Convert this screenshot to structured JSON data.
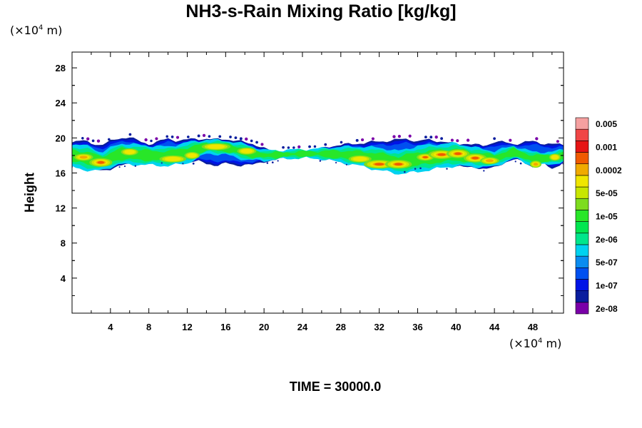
{
  "chart_data": {
    "type": "heatmap",
    "title": "NH3-s-Rain Mixing Ratio [kg/kg]",
    "x_unit_base": "(×10",
    "x_unit_exp": "4",
    "x_unit_tail": " m)",
    "y_unit_base": "(×10",
    "y_unit_exp": "4",
    "y_unit_tail": " m)",
    "ylabel": "Height",
    "xlabel": "",
    "x_ticks": [
      "4",
      "8",
      "12",
      "16",
      "20",
      "24",
      "28",
      "32",
      "36",
      "40",
      "44",
      "48"
    ],
    "y_ticks": [
      "4",
      "8",
      "12",
      "16",
      "20",
      "24",
      "28"
    ],
    "xlim": [
      0,
      51.2
    ],
    "ylim": [
      0,
      29.8
    ],
    "grid": false,
    "time_label": "TIME = 30000.0",
    "colorbar": {
      "colors": [
        "#7a00a8",
        "#0a1d9e",
        "#0014e6",
        "#0050f0",
        "#0a8cf0",
        "#00d2f0",
        "#00e68c",
        "#00e650",
        "#28e628",
        "#7ddc1e",
        "#c8e600",
        "#f0e600",
        "#f0aa00",
        "#f05a00",
        "#e61414",
        "#f04646",
        "#f5a0a0"
      ],
      "labels": [
        "2e-08",
        "1e-07",
        "5e-07",
        "2e-06",
        "1e-05",
        "5e-05",
        "0.0002",
        "0.001",
        "0.005"
      ]
    },
    "layer": {
      "height_range": [
        16.2,
        20.2
      ],
      "upper_edge": [
        [
          0,
          19.6
        ],
        [
          1,
          19.7
        ],
        [
          2,
          19.4
        ],
        [
          3,
          19.2
        ],
        [
          4,
          19.6
        ],
        [
          5,
          20.0
        ],
        [
          6,
          20.1
        ],
        [
          7,
          19.6
        ],
        [
          8,
          19.3
        ],
        [
          9,
          19.6
        ],
        [
          10,
          19.9
        ],
        [
          11,
          19.7
        ],
        [
          12,
          19.8
        ],
        [
          13,
          19.9
        ],
        [
          14,
          19.9
        ],
        [
          15,
          19.8
        ],
        [
          16,
          19.9
        ],
        [
          17,
          19.7
        ],
        [
          18,
          19.5
        ],
        [
          19,
          19.3
        ],
        [
          20,
          18.8
        ],
        [
          21,
          18.4
        ],
        [
          22,
          18.6
        ],
        [
          23,
          18.6
        ],
        [
          24,
          18.6
        ],
        [
          25,
          18.7
        ],
        [
          26,
          18.8
        ],
        [
          27,
          19.1
        ],
        [
          28,
          19.2
        ],
        [
          29,
          19.3
        ],
        [
          30,
          19.4
        ],
        [
          31,
          19.5
        ],
        [
          32,
          19.6
        ],
        [
          33,
          19.7
        ],
        [
          34,
          19.8
        ],
        [
          35,
          19.9
        ],
        [
          36,
          19.6
        ],
        [
          37,
          19.8
        ],
        [
          38,
          19.7
        ],
        [
          39,
          19.5
        ],
        [
          40,
          19.3
        ],
        [
          41,
          19.4
        ],
        [
          42,
          19.2
        ],
        [
          43,
          19.1
        ],
        [
          44,
          19.6
        ],
        [
          45,
          19.5
        ],
        [
          46,
          19.3
        ],
        [
          47,
          19.5
        ],
        [
          48,
          19.6
        ],
        [
          49,
          19.4
        ],
        [
          50,
          19.3
        ],
        [
          51.2,
          19.2
        ]
      ],
      "lower_edge": [
        [
          0,
          16.8
        ],
        [
          1,
          16.7
        ],
        [
          2,
          16.6
        ],
        [
          3,
          16.2
        ],
        [
          4,
          16.5
        ],
        [
          5,
          16.8
        ],
        [
          6,
          17.0
        ],
        [
          7,
          17.0
        ],
        [
          8,
          17.1
        ],
        [
          9,
          17.3
        ],
        [
          10,
          17.2
        ],
        [
          11,
          17.1
        ],
        [
          12,
          17.3
        ],
        [
          13,
          17.4
        ],
        [
          14,
          17.0
        ],
        [
          15,
          16.9
        ],
        [
          16,
          17.1
        ],
        [
          17,
          16.8
        ],
        [
          18,
          17.0
        ],
        [
          19,
          16.9
        ],
        [
          20,
          17.3
        ],
        [
          21,
          17.5
        ],
        [
          22,
          17.6
        ],
        [
          23,
          17.7
        ],
        [
          24,
          17.8
        ],
        [
          25,
          17.7
        ],
        [
          26,
          17.6
        ],
        [
          27,
          17.4
        ],
        [
          28,
          17.2
        ],
        [
          29,
          17.0
        ],
        [
          30,
          16.9
        ],
        [
          31,
          16.8
        ],
        [
          32,
          16.6
        ],
        [
          33,
          16.4
        ],
        [
          34,
          16.3
        ],
        [
          35,
          16.4
        ],
        [
          36,
          16.8
        ],
        [
          37,
          16.8
        ],
        [
          38,
          16.9
        ],
        [
          39,
          16.7
        ],
        [
          40,
          16.8
        ],
        [
          41,
          16.6
        ],
        [
          42,
          16.7
        ],
        [
          43,
          16.4
        ],
        [
          44,
          16.6
        ],
        [
          45,
          17.2
        ],
        [
          46,
          17.5
        ],
        [
          47,
          17.3
        ],
        [
          48,
          16.7
        ],
        [
          49,
          17.1
        ],
        [
          50,
          16.5
        ],
        [
          51.2,
          17.2
        ]
      ],
      "mid_band": [
        [
          0,
          18.0,
          1.3
        ],
        [
          2,
          17.6,
          1.4
        ],
        [
          3,
          17.3,
          1.0
        ],
        [
          5,
          18.2,
          1.2
        ],
        [
          8,
          18.0,
          1.1
        ],
        [
          10,
          17.9,
          1.1
        ],
        [
          12,
          18.3,
          1.2
        ],
        [
          14,
          19.0,
          0.8
        ],
        [
          16,
          18.9,
          0.8
        ],
        [
          18,
          18.4,
          0.9
        ],
        [
          20,
          18.0,
          0.6
        ],
        [
          22,
          18.1,
          0.5
        ],
        [
          24,
          18.2,
          0.5
        ],
        [
          26,
          18.2,
          0.6
        ],
        [
          28,
          18.1,
          0.9
        ],
        [
          30,
          17.9,
          1.1
        ],
        [
          32,
          17.6,
          1.3
        ],
        [
          34,
          17.2,
          1.3
        ],
        [
          36,
          17.6,
          1.5
        ],
        [
          38,
          17.9,
          1.4
        ],
        [
          40,
          18.1,
          1.3
        ],
        [
          42,
          17.8,
          1.1
        ],
        [
          44,
          17.6,
          0.9
        ],
        [
          46,
          18.4,
          0.7
        ],
        [
          48,
          17.6,
          0.8
        ],
        [
          50,
          17.7,
          0.7
        ],
        [
          51.2,
          18.0,
          0.7
        ]
      ],
      "hot_spots": [
        [
          3.0,
          17.2,
          1.2,
          0.5,
          0.95
        ],
        [
          1.2,
          17.8,
          1.0,
          0.4,
          0.7
        ],
        [
          6.0,
          18.4,
          0.9,
          0.4,
          0.55
        ],
        [
          10.5,
          17.6,
          1.4,
          0.4,
          0.6
        ],
        [
          15.0,
          19.0,
          1.5,
          0.4,
          0.6
        ],
        [
          18.2,
          18.5,
          1.0,
          0.4,
          0.5
        ],
        [
          32.0,
          17.0,
          1.6,
          0.5,
          0.9
        ],
        [
          34.0,
          17.0,
          1.4,
          0.5,
          1.0
        ],
        [
          36.8,
          17.8,
          0.9,
          0.4,
          1.0
        ],
        [
          38.5,
          18.1,
          1.4,
          0.5,
          1.05
        ],
        [
          40.2,
          18.2,
          1.2,
          0.5,
          1.1
        ],
        [
          42.0,
          17.7,
          1.2,
          0.5,
          0.95
        ],
        [
          43.5,
          17.4,
          1.0,
          0.4,
          0.8
        ],
        [
          30.0,
          17.6,
          1.2,
          0.4,
          0.6
        ],
        [
          48.3,
          17.0,
          0.6,
          0.4,
          0.7
        ],
        [
          50.3,
          17.8,
          0.6,
          0.4,
          0.6
        ],
        [
          12.5,
          18.0,
          0.8,
          0.4,
          0.5
        ]
      ]
    }
  }
}
